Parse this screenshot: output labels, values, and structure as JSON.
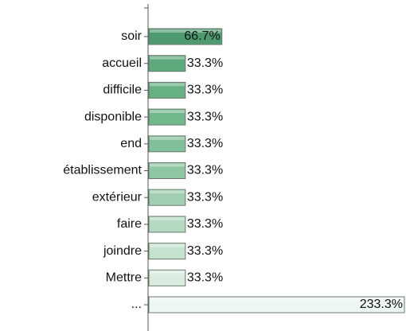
{
  "chart_data": {
    "type": "bar",
    "orientation": "horizontal",
    "categories": [
      "soir",
      "accueil",
      "difficile",
      "disponible",
      "end",
      "établissement",
      "extérieur",
      "faire",
      "joindre",
      "Mettre",
      "..."
    ],
    "values": [
      66.7,
      33.3,
      33.3,
      33.3,
      33.3,
      33.3,
      33.3,
      33.3,
      33.3,
      33.3,
      233.3
    ],
    "value_labels": [
      "66.7%",
      "33.3%",
      "33.3%",
      "33.3%",
      "33.3%",
      "33.3%",
      "33.3%",
      "33.3%",
      "33.3%",
      "33.3%",
      "233.3%"
    ],
    "colors": [
      "#4f9b70",
      "#5da97b",
      "#66b083",
      "#72b88d",
      "#80bf98",
      "#8fc6a3",
      "#a0cfb1",
      "#b3d9c0",
      "#c6e3d0",
      "#d9ecdf",
      "#eef6f1"
    ]
  }
}
